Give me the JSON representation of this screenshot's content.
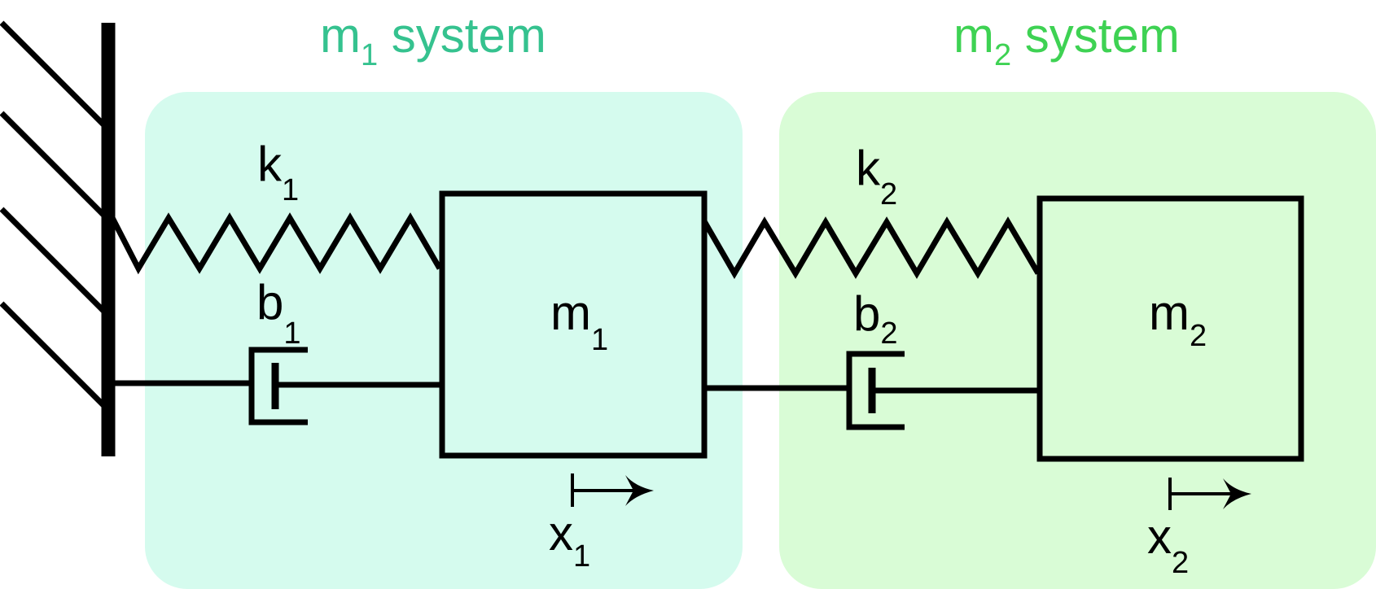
{
  "colors": {
    "m1_region": "#d5fbee",
    "m2_region": "#d9fcd6",
    "m1_title": "#35c28f",
    "m2_title": "#3ed253",
    "ink": "#000000"
  },
  "systems": [
    {
      "title_main": "m",
      "title_sub": "1",
      "title_rest": " system"
    },
    {
      "title_main": "m",
      "title_sub": "2",
      "title_rest": " system"
    }
  ],
  "springs": [
    {
      "main": "k",
      "sub": "1"
    },
    {
      "main": "k",
      "sub": "2"
    }
  ],
  "dampers": [
    {
      "main": "b",
      "sub": "1"
    },
    {
      "main": "b",
      "sub": "2"
    }
  ],
  "masses": [
    {
      "main": "m",
      "sub": "1"
    },
    {
      "main": "m",
      "sub": "2"
    }
  ],
  "displacements": [
    {
      "main": "x",
      "sub": "1"
    },
    {
      "main": "x",
      "sub": "2"
    }
  ]
}
